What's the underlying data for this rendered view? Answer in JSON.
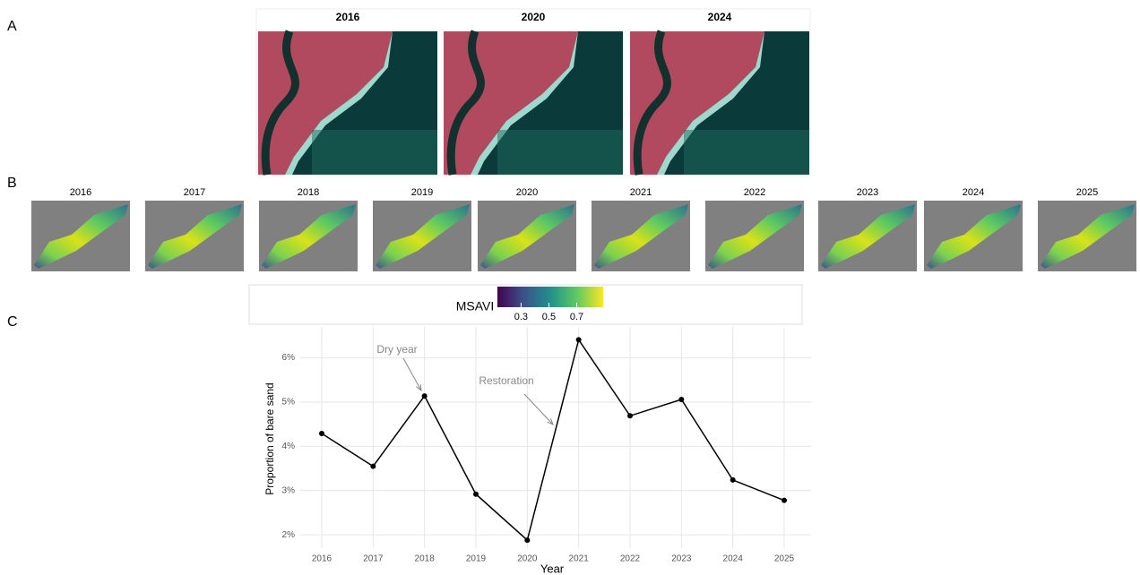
{
  "panel_labels": [
    "A",
    "B",
    "C"
  ],
  "panel_a": {
    "titles": [
      "2016",
      "2020",
      "2024"
    ]
  },
  "panel_b": {
    "titles": [
      "2016",
      "2017",
      "2018",
      "2019",
      "2020",
      "2021",
      "2022",
      "2023",
      "2024",
      "2025"
    ],
    "colorbar": {
      "title": "MSAVI",
      "clim": [
        0.13,
        0.89
      ],
      "ticks": [
        0.3,
        0.5,
        0.7
      ]
    }
  },
  "chart_data": {
    "type": "line",
    "x_label": "Year",
    "y_label": "Proportion of bare sand",
    "categories": [
      "2016",
      "2017",
      "2018",
      "2019",
      "2020",
      "2021",
      "2022",
      "2023",
      "2024",
      "2025"
    ],
    "values": [
      4.29,
      3.55,
      5.14,
      2.92,
      1.88,
      6.41,
      4.69,
      5.06,
      3.24,
      2.78
    ],
    "color": "#000000",
    "ylim": [
      1.7,
      6.7
    ],
    "yticks": [
      {
        "value": 2,
        "label": "2%"
      },
      {
        "value": 3,
        "label": "3%"
      },
      {
        "value": 4,
        "label": "4%"
      },
      {
        "value": 5,
        "label": "5%"
      },
      {
        "value": 6,
        "label": "6%"
      }
    ],
    "grid": true,
    "annotations": [
      {
        "text": "Dry year"
      },
      {
        "text": "Restoration"
      }
    ]
  }
}
